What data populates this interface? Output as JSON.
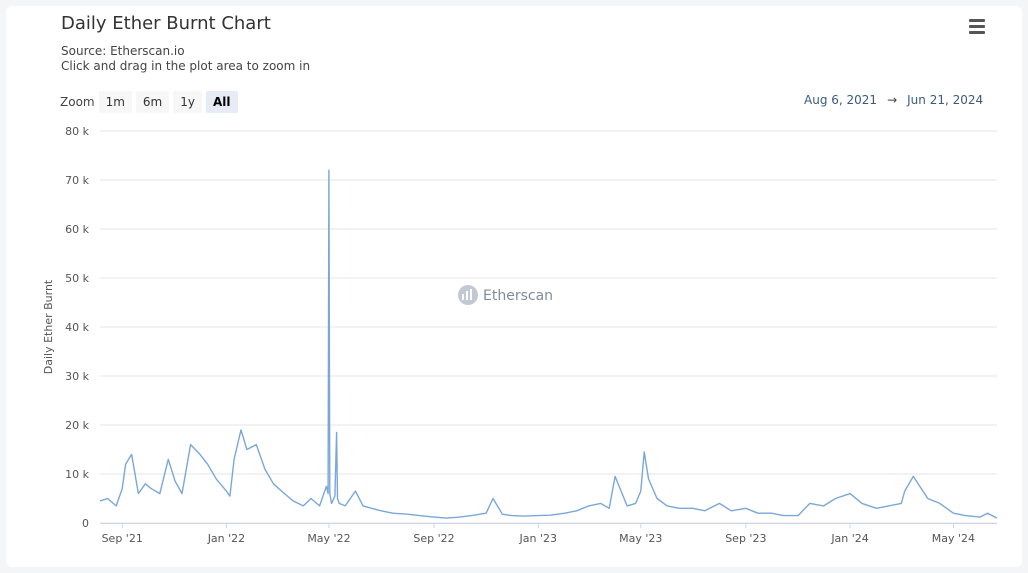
{
  "header": {
    "title": "Daily Ether Burnt Chart",
    "source": "Source: Etherscan.io",
    "hint": "Click and drag in the plot area to zoom in",
    "menu_icon": "hamburger-menu-icon"
  },
  "zoom": {
    "label": "Zoom",
    "buttons": [
      "1m",
      "6m",
      "1y",
      "All"
    ],
    "active": "All"
  },
  "range": {
    "from": "Aug 6, 2021",
    "separator": "→",
    "to": "Jun 21, 2024"
  },
  "watermark": {
    "text": "Etherscan"
  },
  "colors": {
    "series": "#7aa7d8",
    "grid": "#e6e6e6",
    "accent": "#e6ebf5"
  },
  "chart_data": {
    "type": "line",
    "title": "Daily Ether Burnt Chart",
    "ylabel": "Daily Ether Burnt",
    "xlabel": "",
    "ylim": [
      0,
      80000
    ],
    "yticks": [
      0,
      10000,
      20000,
      30000,
      40000,
      50000,
      60000,
      70000,
      80000
    ],
    "ytick_labels": [
      "0",
      "10 k",
      "20 k",
      "30 k",
      "40 k",
      "50 k",
      "60 k",
      "70 k",
      "80 k"
    ],
    "xlim": [
      "2021-08-06",
      "2024-06-21"
    ],
    "xticks": [
      "2021-09-01",
      "2022-01-01",
      "2022-05-01",
      "2022-09-01",
      "2023-01-01",
      "2023-05-01",
      "2023-09-01",
      "2024-01-01",
      "2024-05-01"
    ],
    "xtick_labels": [
      "Sep '21",
      "Jan '22",
      "May '22",
      "Sep '22",
      "Jan '23",
      "May '23",
      "Sep '23",
      "Jan '24",
      "May '24"
    ],
    "grid": true,
    "legend": "none",
    "series": [
      {
        "x": [
          "2021-08-06",
          "2021-08-15",
          "2021-08-25",
          "2021-09-01",
          "2021-09-05",
          "2021-09-12",
          "2021-09-20",
          "2021-09-28",
          "2021-10-05",
          "2021-10-15",
          "2021-10-25",
          "2021-11-02",
          "2021-11-10",
          "2021-11-20",
          "2021-12-01",
          "2021-12-10",
          "2021-12-20",
          "2022-01-01",
          "2022-01-05",
          "2022-01-10",
          "2022-01-18",
          "2022-01-25",
          "2022-02-05",
          "2022-02-15",
          "2022-02-25",
          "2022-03-10",
          "2022-03-20",
          "2022-04-01",
          "2022-04-10",
          "2022-04-20",
          "2022-04-28",
          "2022-04-30",
          "2022-05-01",
          "2022-05-02",
          "2022-05-04",
          "2022-05-08",
          "2022-05-10",
          "2022-05-11",
          "2022-05-13",
          "2022-05-20",
          "2022-06-01",
          "2022-06-10",
          "2022-06-20",
          "2022-07-01",
          "2022-07-15",
          "2022-08-01",
          "2022-08-15",
          "2022-09-01",
          "2022-09-15",
          "2022-10-01",
          "2022-10-15",
          "2022-11-01",
          "2022-11-09",
          "2022-11-20",
          "2022-12-01",
          "2022-12-15",
          "2023-01-01",
          "2023-01-15",
          "2023-02-01",
          "2023-02-15",
          "2023-03-01",
          "2023-03-15",
          "2023-03-25",
          "2023-04-01",
          "2023-04-15",
          "2023-04-25",
          "2023-05-01",
          "2023-05-05",
          "2023-05-10",
          "2023-05-20",
          "2023-06-01",
          "2023-06-15",
          "2023-07-01",
          "2023-07-15",
          "2023-08-01",
          "2023-08-15",
          "2023-09-01",
          "2023-09-15",
          "2023-10-01",
          "2023-10-15",
          "2023-11-01",
          "2023-11-15",
          "2023-12-01",
          "2023-12-15",
          "2024-01-01",
          "2024-01-15",
          "2024-02-01",
          "2024-02-15",
          "2024-03-01",
          "2024-03-05",
          "2024-03-15",
          "2024-04-01",
          "2024-04-15",
          "2024-05-01",
          "2024-05-15",
          "2024-06-01",
          "2024-06-10",
          "2024-06-21"
        ],
        "y": [
          4500,
          5000,
          3500,
          7000,
          12000,
          14000,
          6000,
          8000,
          7000,
          6000,
          13000,
          8500,
          6000,
          16000,
          14000,
          12000,
          9000,
          6500,
          5500,
          13000,
          19000,
          15000,
          16000,
          11000,
          8000,
          6000,
          4500,
          3500,
          5000,
          3500,
          7500,
          6000,
          72000,
          6000,
          4000,
          5500,
          18500,
          5000,
          4000,
          3500,
          6500,
          3500,
          3000,
          2500,
          2000,
          1800,
          1500,
          1200,
          1000,
          1200,
          1500,
          2000,
          5000,
          1800,
          1500,
          1400,
          1500,
          1600,
          2000,
          2500,
          3500,
          4000,
          3000,
          9500,
          3500,
          4000,
          6500,
          14500,
          9000,
          5000,
          3500,
          3000,
          3000,
          2500,
          4000,
          2500,
          3000,
          2000,
          2000,
          1500,
          1500,
          4000,
          3500,
          5000,
          6000,
          4000,
          3000,
          3500,
          4000,
          6500,
          9500,
          5000,
          4000,
          2000,
          1500,
          1200,
          2000,
          1000
        ]
      }
    ]
  }
}
